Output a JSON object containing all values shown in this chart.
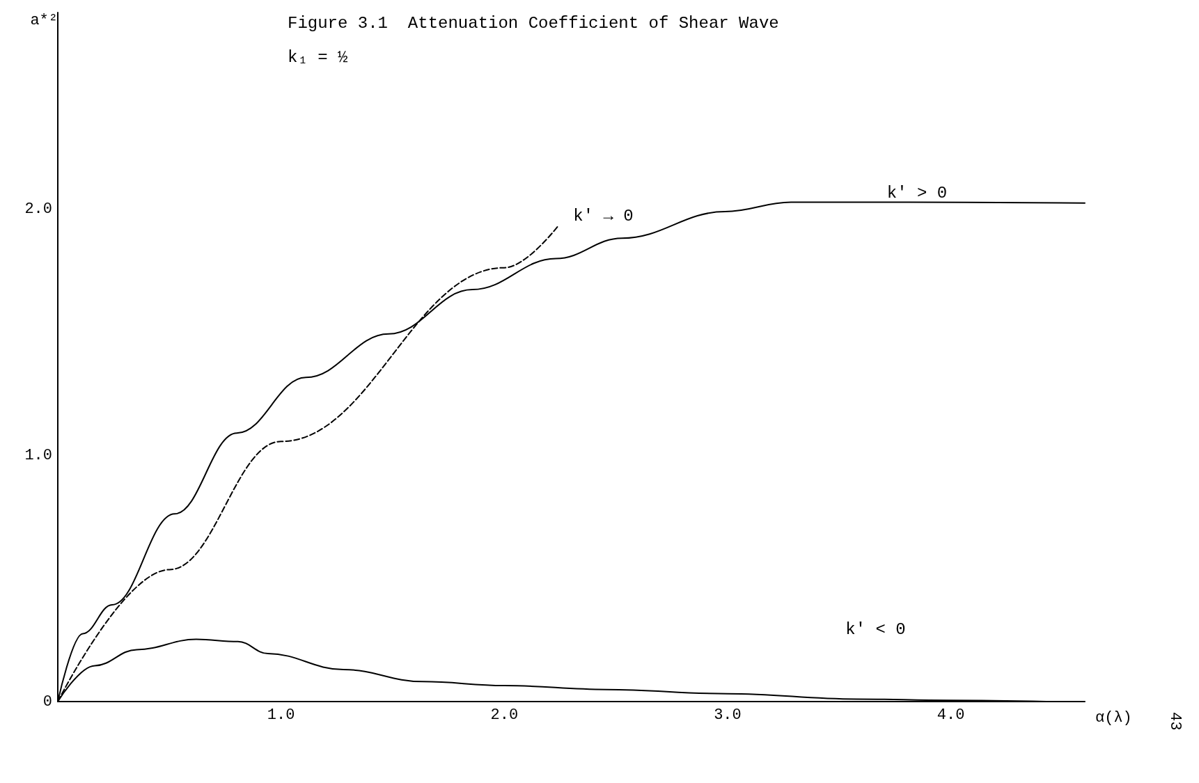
{
  "chart_data": {
    "type": "line",
    "title": "Figure 3.1  Attenuation Coefficient of Shear Wave",
    "subtitle": "k₁ = ½",
    "xlabel": "α(λ)",
    "ylabel": "a*²",
    "xlim": [
      0,
      4.6
    ],
    "ylim": [
      0,
      2.8
    ],
    "xticks": [
      {
        "value": 1,
        "label": "1.0"
      },
      {
        "value": 2,
        "label": "2.0"
      },
      {
        "value": 3,
        "label": "3.0"
      },
      {
        "value": 4,
        "label": "4.0"
      }
    ],
    "yticks": [
      0,
      {
        "value": 1,
        "label": "1.0"
      },
      {
        "value": 2,
        "label": "2.0"
      }
    ],
    "grid": false,
    "marker": "none",
    "series": [
      {
        "color": "#000000",
        "line_style": "solid",
        "x": [
          0,
          0.112,
          0.243,
          0.524,
          0.802,
          1.111,
          1.482,
          1.857,
          2.231,
          2.527,
          2.989,
          3.284,
          3.812,
          4.6
        ],
        "values": [
          0,
          0.276,
          0.393,
          0.763,
          1.091,
          1.317,
          1.494,
          1.674,
          1.8,
          1.883,
          1.991,
          2.029,
          2.029,
          2.026
        ]
      },
      {
        "color": "#000000",
        "line_style": "dashed",
        "x": [
          0,
          0.5,
          1.0,
          2.0,
          2.242
        ],
        "values": [
          0,
          0.536,
          1.057,
          1.763,
          1.934
        ]
      },
      {
        "color": "#000000",
        "line_style": "solid",
        "x": [
          0,
          0.166,
          0.353,
          0.62,
          0.807,
          0.941,
          1.279,
          1.636,
          2.0,
          2.456,
          3.0,
          3.578,
          4.0,
          4.428
        ],
        "values": [
          0,
          0.146,
          0.211,
          0.253,
          0.244,
          0.195,
          0.13,
          0.081,
          0.065,
          0.049,
          0.032,
          0.01,
          0.005,
          0
        ]
      }
    ],
    "annotations": [
      "k' > 0",
      "k' → 0",
      "k' < 0",
      "43"
    ]
  }
}
